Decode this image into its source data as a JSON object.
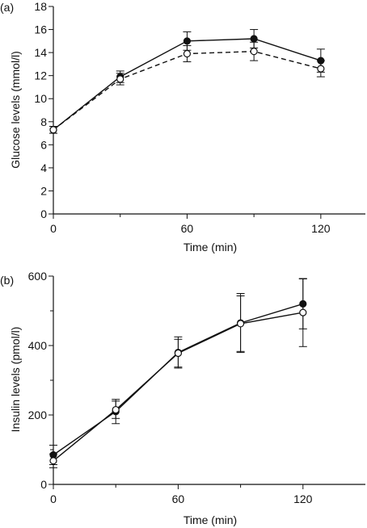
{
  "chart_data": [
    {
      "type": "line",
      "panel_label": "(a)",
      "xlabel": "Time (min)",
      "ylabel": "Glucose levels (mmol/l)",
      "xlim": [
        0,
        140
      ],
      "ylim": [
        0,
        18
      ],
      "x_ticks": [
        0,
        60,
        120
      ],
      "x_minor_ticks": [
        30,
        90
      ],
      "y_ticks": [
        0,
        2,
        4,
        6,
        8,
        10,
        12,
        14,
        16,
        18
      ],
      "x": [
        0,
        30,
        60,
        90,
        120
      ],
      "series": [
        {
          "marker": "filled",
          "line_style": "solid",
          "values": [
            7.3,
            11.9,
            15.0,
            15.2,
            13.3
          ],
          "error": [
            0.3,
            0.5,
            0.8,
            0.8,
            1.0
          ]
        },
        {
          "marker": "open",
          "line_style": "dashed",
          "values": [
            7.3,
            11.7,
            13.9,
            14.1,
            12.6
          ],
          "error": [
            0.3,
            0.5,
            0.7,
            0.8,
            0.7
          ]
        }
      ]
    },
    {
      "type": "line",
      "panel_label": "(b)",
      "xlabel": "Time (min)",
      "ylabel": "Insulin levels (pmol/l)",
      "xlim": [
        0,
        150
      ],
      "ylim": [
        0,
        600
      ],
      "x_ticks": [
        0,
        60,
        120
      ],
      "x_minor_ticks": [
        30,
        90
      ],
      "y_ticks": [
        0,
        200,
        400,
        600
      ],
      "y_minor_ticks": [
        100,
        300,
        500
      ],
      "x": [
        0,
        30,
        60,
        90,
        120
      ],
      "series": [
        {
          "marker": "filled",
          "line_style": "solid",
          "values": [
            85,
            210,
            380,
            465,
            520
          ],
          "error": [
            28,
            35,
            45,
            85,
            72
          ]
        },
        {
          "marker": "open",
          "line_style": "solid",
          "values": [
            68,
            215,
            378,
            463,
            495
          ],
          "error": [
            20,
            25,
            40,
            80,
            98
          ]
        }
      ]
    }
  ]
}
